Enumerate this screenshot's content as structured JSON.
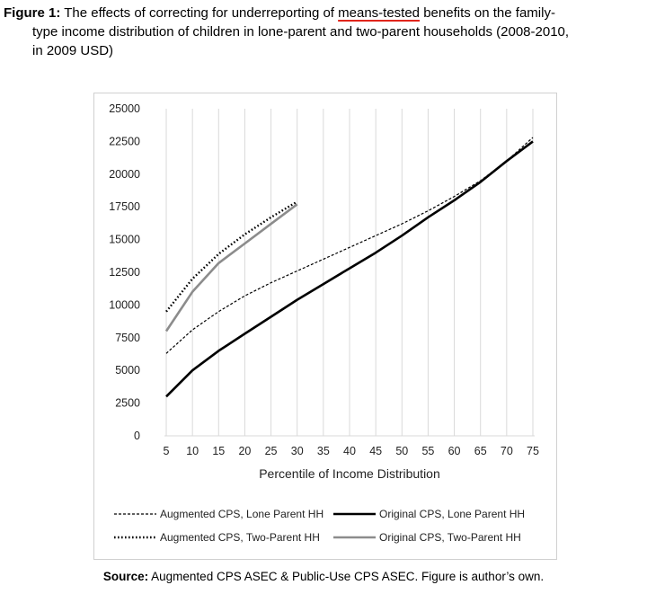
{
  "caption": {
    "label": "Figure 1:",
    "line1_a": " The effects of correcting for underreporting of ",
    "line1_underlined": "means-tested",
    "line1_b": " benefits on the family-",
    "line2": "type income distribution of children in lone-parent and two-parent households (2008-2010,",
    "line3": "in 2009 USD)"
  },
  "source": {
    "label": "Source:",
    "text": " Augmented  CPS ASEC & Public-Use CPS ASEC. Figure is author’s own."
  },
  "chart_data": {
    "type": "line",
    "title": "",
    "xlabel": "Percentile of Income Distribution",
    "ylabel": "",
    "x_ticks": [
      5,
      10,
      15,
      20,
      25,
      30,
      35,
      40,
      45,
      50,
      55,
      60,
      65,
      70,
      75
    ],
    "y_ticks": [
      0,
      2500,
      5000,
      7500,
      10000,
      12500,
      15000,
      17500,
      20000,
      22500,
      25000
    ],
    "xlim": [
      5,
      75
    ],
    "ylim": [
      0,
      25000
    ],
    "grid": "vertical",
    "legend_position": "bottom",
    "series": [
      {
        "name": "Augmented CPS, Lone Parent HH",
        "style": "thin-dashed",
        "color": "#000000",
        "x": [
          5,
          10,
          15,
          20,
          25,
          30,
          35,
          40,
          45,
          50,
          55,
          60,
          65,
          70,
          75
        ],
        "y": [
          6300,
          8100,
          9500,
          10700,
          11700,
          12600,
          13500,
          14400,
          15300,
          16200,
          17200,
          18300,
          19500,
          21000,
          22800
        ]
      },
      {
        "name": "Augmented CPS, Two-Parent HH",
        "style": "thick-dotted",
        "color": "#000000",
        "x": [
          5,
          10,
          15,
          20,
          25,
          30
        ],
        "y": [
          9500,
          12000,
          13900,
          15400,
          16700,
          17900
        ]
      },
      {
        "name": "Original CPS, Lone Parent HH",
        "style": "thick-solid",
        "color": "#000000",
        "x": [
          5,
          10,
          15,
          20,
          25,
          30,
          35,
          40,
          45,
          50,
          55,
          60,
          65,
          70,
          75
        ],
        "y": [
          3000,
          5000,
          6500,
          7800,
          9100,
          10400,
          11600,
          12800,
          14000,
          15300,
          16700,
          18000,
          19400,
          21000,
          22500
        ]
      },
      {
        "name": "Original CPS, Two-Parent HH",
        "style": "thick-solid",
        "color": "#8c8c8c",
        "x": [
          5,
          10,
          15,
          20,
          25,
          30
        ],
        "y": [
          8000,
          11000,
          13200,
          14700,
          16200,
          17700
        ]
      }
    ]
  }
}
